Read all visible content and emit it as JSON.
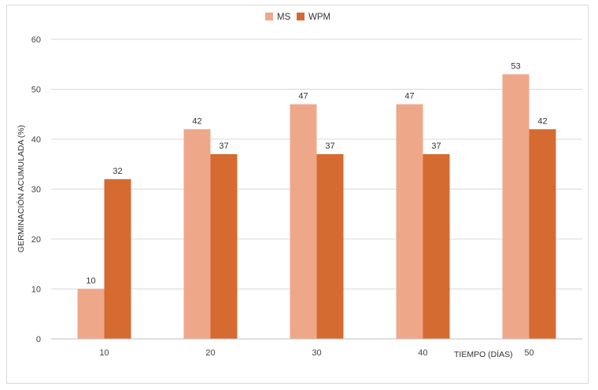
{
  "chart_data": {
    "type": "bar",
    "title": "",
    "xlabel": "TIEMPO (DÍAS)",
    "ylabel": "GERMINACIÓN ACUMULADA (%)",
    "ylim": [
      0,
      60
    ],
    "yticks": [
      "0",
      "10",
      "20",
      "30",
      "40",
      "50",
      "60"
    ],
    "categories": [
      "10",
      "20",
      "30",
      "40",
      "50"
    ],
    "series": [
      {
        "name": "MS",
        "values": [
          10,
          42,
          47,
          47,
          53
        ],
        "color": "#EFA78A"
      },
      {
        "name": "WPM",
        "values": [
          32,
          37,
          37,
          37,
          42
        ],
        "color": "#D56B30"
      }
    ],
    "grid": true,
    "legend": "top-center"
  }
}
